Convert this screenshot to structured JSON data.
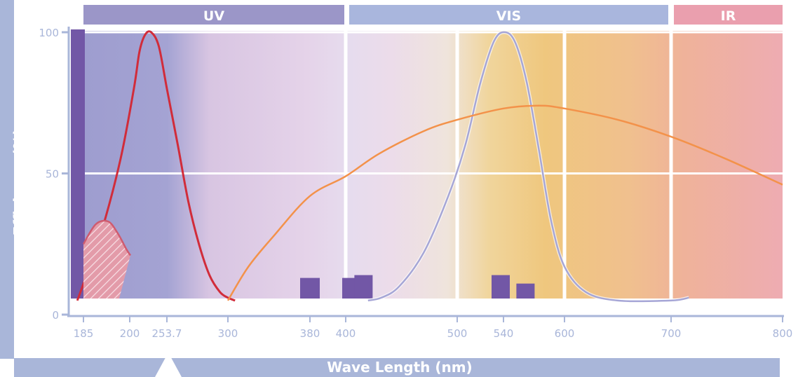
{
  "chart_data": {
    "type": "line",
    "xlabel": "Wave Length (nm)",
    "ylabel": "Efficiency (%)",
    "bands": [
      {
        "label": "UV",
        "color": "#9b96c8"
      },
      {
        "label": "VIS",
        "color": "#a9b6dd"
      },
      {
        "label": "IR",
        "color": "#ea9fae"
      }
    ],
    "x_ticks": [
      "185",
      "200",
      "253.7",
      "300",
      "380",
      "400",
      "500",
      "540",
      "600",
      "700",
      "800"
    ],
    "y_ticks": [
      "0",
      "50",
      "100"
    ],
    "ylim": [
      0,
      100
    ],
    "series": [
      {
        "color": "#d12c3a",
        "points": [
          [
            183,
            5
          ],
          [
            185,
            11
          ],
          [
            191,
            30
          ],
          [
            197,
            55
          ],
          [
            206,
            80
          ],
          [
            214,
            93
          ],
          [
            222,
            99
          ],
          [
            231,
            100
          ],
          [
            242,
            95
          ],
          [
            253.7,
            80
          ],
          [
            262,
            60
          ],
          [
            270,
            40
          ],
          [
            278,
            25
          ],
          [
            286,
            14
          ],
          [
            294,
            8
          ],
          [
            300,
            6
          ],
          [
            307,
            5
          ]
        ]
      },
      {
        "color": "#a6a6d6",
        "points": [
          [
            420,
            5
          ],
          [
            432,
            6
          ],
          [
            448,
            10
          ],
          [
            470,
            22
          ],
          [
            492,
            42
          ],
          [
            507,
            60
          ],
          [
            520,
            82
          ],
          [
            532,
            97
          ],
          [
            542,
            100
          ],
          [
            552,
            96
          ],
          [
            563,
            82
          ],
          [
            575,
            58
          ],
          [
            587,
            33
          ],
          [
            600,
            17
          ],
          [
            620,
            8
          ],
          [
            650,
            5
          ],
          [
            700,
            5
          ],
          [
            716,
            6
          ]
        ]
      },
      {
        "color": "#f3924a",
        "points": [
          [
            300,
            5
          ],
          [
            320,
            17
          ],
          [
            345,
            28
          ],
          [
            380,
            42
          ],
          [
            400,
            49
          ],
          [
            430,
            57
          ],
          [
            470,
            65
          ],
          [
            500,
            69
          ],
          [
            540,
            73
          ],
          [
            575,
            74
          ],
          [
            600,
            73
          ],
          [
            650,
            69
          ],
          [
            700,
            63
          ],
          [
            750,
            55
          ],
          [
            800,
            46
          ]
        ]
      },
      {
        "color": "#cf5b6f",
        "fill": "hatch",
        "points": [
          [
            185,
            25
          ],
          [
            189,
            32
          ],
          [
            193,
            33
          ],
          [
            196,
            29
          ],
          [
            199,
            23
          ],
          [
            201,
            21
          ]
        ]
      }
    ],
    "lines": [
      {
        "x": 185,
        "value": 96
      },
      {
        "x": 380,
        "value": 8
      },
      {
        "x": 400,
        "value": 8
      },
      {
        "x": 421,
        "value": 9
      },
      {
        "x": 540,
        "value": 9
      },
      {
        "x": 572,
        "value": 6
      }
    ]
  }
}
